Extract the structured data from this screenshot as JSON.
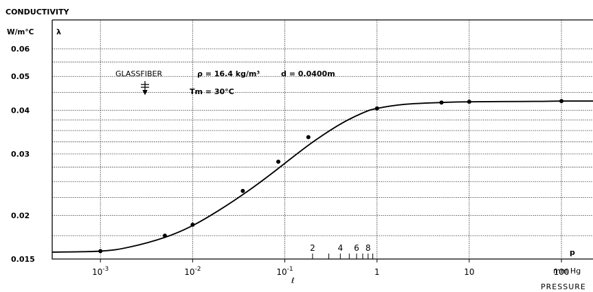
{
  "chart_data": {
    "type": "line",
    "title": "CONDUCTIVITY",
    "ylabel_units": "W/m°C",
    "ylabel_symbol": "λ",
    "xlabel_symbol": "p",
    "xlabel_units": "mm Hg",
    "xlabel": "PRESSURE",
    "x_scale": "log",
    "y_scale": "log",
    "xlim": [
      0.0003,
      220
    ],
    "ylim": [
      0.015,
      0.06
    ],
    "grid": true,
    "x_ticks": [
      {
        "value": 0.001,
        "base": "10",
        "exp": "-3"
      },
      {
        "value": 0.01,
        "base": "10",
        "exp": "-2"
      },
      {
        "value": 0.1,
        "base": "10",
        "exp": "-1"
      },
      {
        "value": 1,
        "label": "1"
      },
      {
        "value": 10,
        "label": "10"
      },
      {
        "value": 100,
        "label": "100"
      }
    ],
    "y_ticks": [
      {
        "value": 0.015,
        "label": "0.015"
      },
      {
        "value": 0.02,
        "label": "0.02"
      },
      {
        "value": 0.03,
        "label": "0.03"
      },
      {
        "value": 0.04,
        "label": "0.04"
      },
      {
        "value": 0.05,
        "label": "0.05"
      },
      {
        "value": 0.06,
        "label": "0.06"
      }
    ],
    "minor_ticks": [
      {
        "value": 0.2,
        "label": "2"
      },
      {
        "value": 0.3,
        "label": ""
      },
      {
        "value": 0.4,
        "label": "4"
      },
      {
        "value": 0.5,
        "label": ""
      },
      {
        "value": 0.6,
        "label": "6"
      },
      {
        "value": 0.7,
        "label": ""
      },
      {
        "value": 0.8,
        "label": "8"
      },
      {
        "value": 0.9,
        "label": ""
      }
    ],
    "annotations": {
      "material": "GLASSFIBER",
      "density": "ρ = 16.4 kg/m³",
      "thickness": "d = 0.0400m",
      "mean_temp": "Tm = 30°C",
      "bottom_mark": "ℓ"
    },
    "series": [
      {
        "kind": "points",
        "x": [
          0.001,
          0.005,
          0.01,
          0.035,
          0.085,
          0.18,
          1,
          5,
          10,
          100
        ],
        "y": [
          0.0158,
          0.0175,
          0.0188,
          0.0235,
          0.0285,
          0.0335,
          0.0405,
          0.0421,
          0.0423,
          0.0425
        ]
      },
      {
        "kind": "curve",
        "x": [
          0.0003,
          0.001,
          0.002,
          0.005,
          0.01,
          0.02,
          0.04,
          0.07,
          0.1,
          0.2,
          0.4,
          0.7,
          1,
          2,
          5,
          10,
          50,
          100,
          220
        ],
        "y": [
          0.0157,
          0.0158,
          0.0162,
          0.0173,
          0.0187,
          0.0208,
          0.0235,
          0.0262,
          0.0282,
          0.0324,
          0.0365,
          0.0393,
          0.0405,
          0.0416,
          0.0421,
          0.0423,
          0.0424,
          0.0425,
          0.0425
        ]
      }
    ]
  }
}
